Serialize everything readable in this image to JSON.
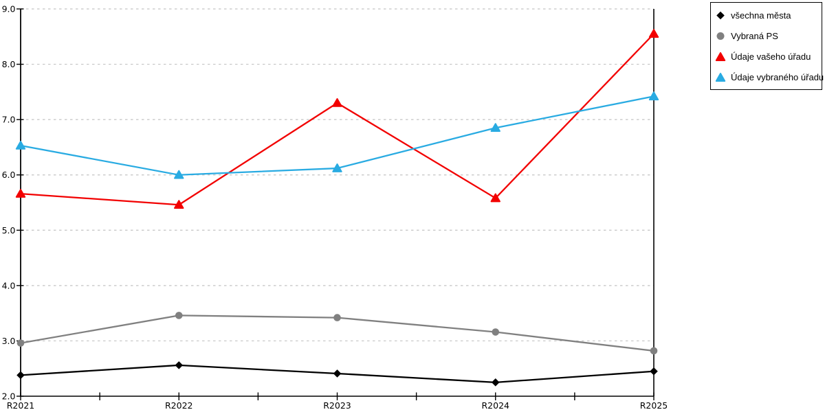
{
  "chart_data": {
    "type": "line",
    "title": "",
    "xlabel": "",
    "ylabel": "",
    "categories": [
      "R2021",
      "R2022",
      "R2023",
      "R2024",
      "R2025"
    ],
    "series": [
      {
        "name": "všechna města",
        "color": "#000000",
        "marker": "diamond",
        "values": [
          2.38,
          2.56,
          2.41,
          2.25,
          2.45
        ]
      },
      {
        "name": "Vybraná PS",
        "color": "#808080",
        "marker": "circle",
        "values": [
          2.96,
          3.46,
          3.42,
          3.16,
          2.82
        ]
      },
      {
        "name": "Údaje vašeho úřadu",
        "color": "#f20000",
        "marker": "triangle",
        "values": [
          5.66,
          5.46,
          7.3,
          5.58,
          8.55
        ]
      },
      {
        "name": "Údaje vybraného úřadu",
        "color": "#29abe2",
        "marker": "triangle",
        "values": [
          6.53,
          6.0,
          6.12,
          6.85,
          7.42
        ]
      }
    ],
    "ylim": [
      2.0,
      9.0
    ],
    "ytick_labels": [
      "2.0",
      "3.0",
      "4.0",
      "5.0",
      "6.0",
      "7.0",
      "8.0",
      "9.0"
    ],
    "grid": "horizontal-dashed",
    "grid_color": "#c3c3c3",
    "axis_color": "#000000",
    "background_color": "#ffffff",
    "legend_position": "top-right",
    "legend_border_color": "#000000"
  }
}
